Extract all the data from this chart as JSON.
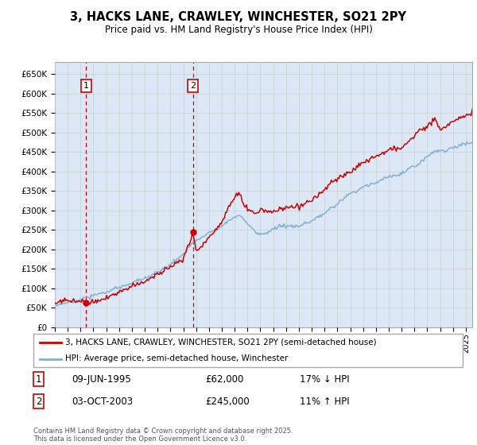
{
  "title1": "3, HACKS LANE, CRAWLEY, WINCHESTER, SO21 2PY",
  "title2": "Price paid vs. HM Land Registry's House Price Index (HPI)",
  "ylim": [
    0,
    680000
  ],
  "xlim_start": 1993.0,
  "xlim_end": 2025.5,
  "sale1_x": 1995.44,
  "sale1_y": 62000,
  "sale1_label": "1",
  "sale2_x": 2003.75,
  "sale2_y": 245000,
  "sale2_label": "2",
  "price_color": "#cc0000",
  "hpi_color": "#7ab0d4",
  "legend_price_label": "3, HACKS LANE, CRAWLEY, WINCHESTER, SO21 2PY (semi-detached house)",
  "legend_hpi_label": "HPI: Average price, semi-detached house, Winchester",
  "annotation1_date": "09-JUN-1995",
  "annotation1_price": "£62,000",
  "annotation1_hpi": "17% ↓ HPI",
  "annotation2_date": "03-OCT-2003",
  "annotation2_price": "£245,000",
  "annotation2_hpi": "11% ↑ HPI",
  "footer": "Contains HM Land Registry data © Crown copyright and database right 2025.\nThis data is licensed under the Open Government Licence v3.0.",
  "grid_color": "#cccccc",
  "bg_color": "#dce8f5",
  "hatch_color": "#c8d8ec"
}
